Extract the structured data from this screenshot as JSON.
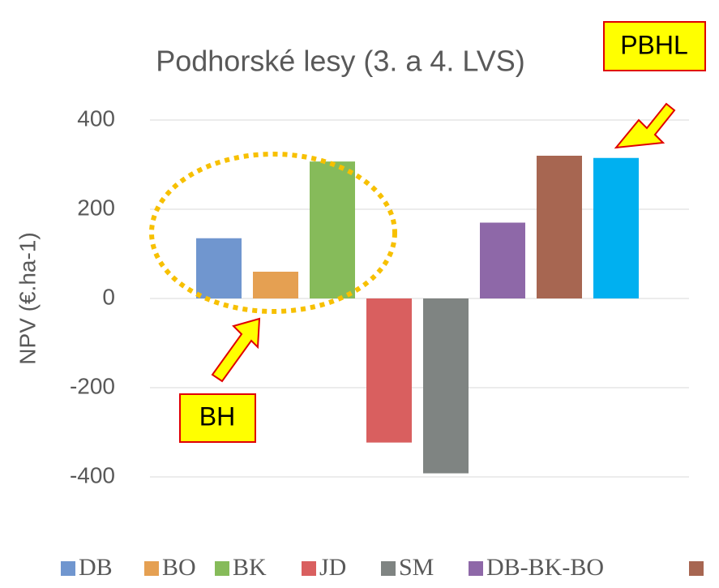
{
  "chart_data": {
    "type": "bar",
    "title": "Podhorské lesy (3. a 4. LVS)",
    "y_label": "NPV (€.ha-1)",
    "ylim": [
      -400,
      400
    ],
    "yticks": [
      -400,
      -200,
      0,
      200,
      400
    ],
    "grid": true,
    "series": [
      {
        "name": "DB",
        "color": "#7096cf",
        "values": [
          135
        ]
      },
      {
        "name": "BO",
        "color": "#e5a052",
        "values": [
          60
        ]
      },
      {
        "name": "BK",
        "color": "#86bb5a",
        "values": [
          307
        ]
      },
      {
        "name": "JD",
        "color": "#d95f5f",
        "values": [
          -323
        ]
      },
      {
        "name": "SM",
        "color": "#7f8482",
        "values": [
          -392
        ]
      },
      {
        "name": "DB-BK-BO",
        "color": "#8e68a8",
        "values": [
          170
        ]
      },
      {
        "color": "#a76651",
        "values": [
          320
        ]
      },
      {
        "color": "#00b0f0",
        "values": [
          315
        ]
      }
    ],
    "annotations": [
      "PBHL",
      "BH"
    ]
  }
}
